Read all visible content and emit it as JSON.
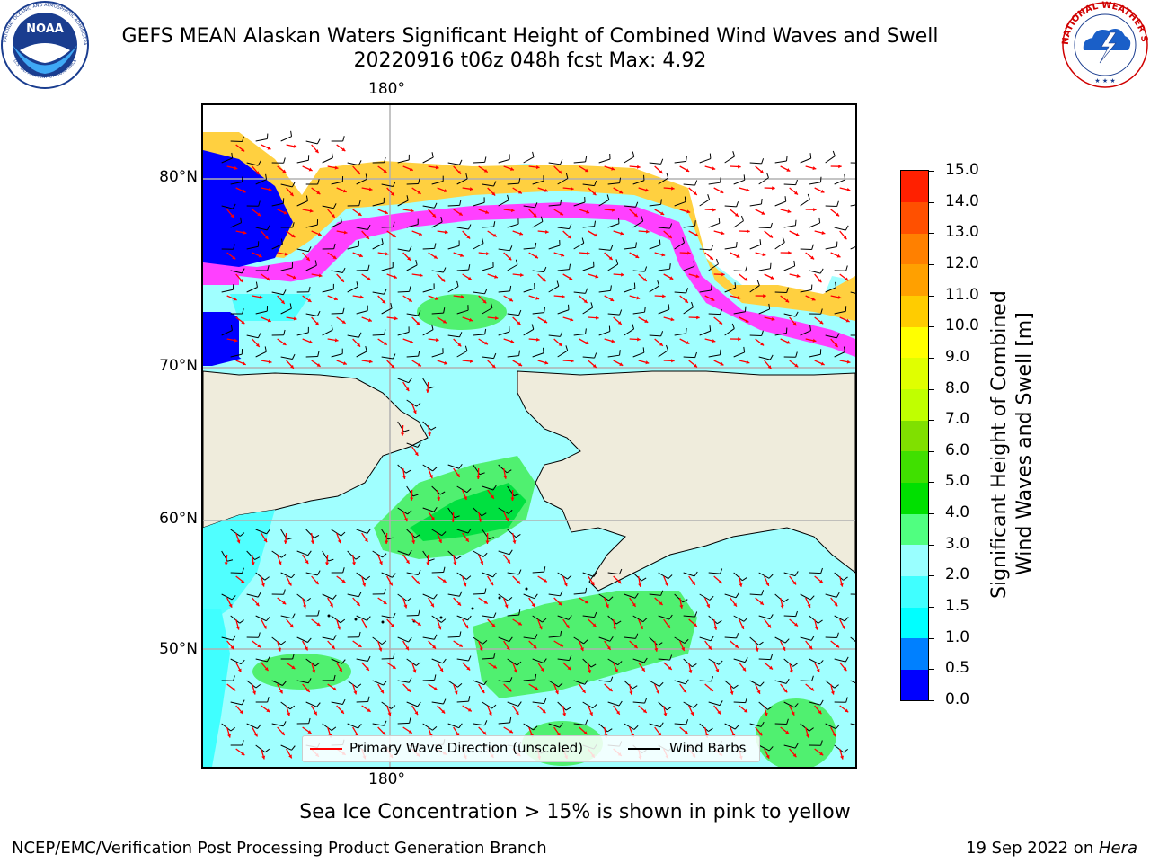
{
  "header": {
    "title_line1": "GEFS MEAN Alaskan Waters Significant Height of Combined Wind Waves and Swell",
    "title_line2": "20220916 t06z 048h fcst   Max: 4.92"
  },
  "logos": {
    "noaa": {
      "name": "NOAA",
      "ring_text": "NATIONAL OCEANIC AND ATMOSPHERIC ADMINISTRATION",
      "bottom_text": "U.S. DEPARTMENT OF COMMERCE"
    },
    "nws": {
      "ring_text": "NATIONAL WEATHER SERVICE"
    }
  },
  "map": {
    "lon_top_label": "180°",
    "lon_bottom_label": "180°",
    "lat_labels": [
      "80°N",
      "70°N",
      "60°N",
      "50°N"
    ]
  },
  "legend": {
    "wave_label": "Primary Wave Direction (unscaled)",
    "barb_label": "Wind Barbs",
    "wave_color": "#ff0000",
    "barb_color": "#000000"
  },
  "colorbar": {
    "title_line1": "Significant Height of Combined",
    "title_line2": "Wind Waves and Swell [m]",
    "ticks": [
      "0.0",
      "0.5",
      "1.0",
      "1.5",
      "2.0",
      "3.0",
      "4.0",
      "5.0",
      "6.0",
      "7.0",
      "8.0",
      "9.0",
      "10.0",
      "11.0",
      "12.0",
      "13.0",
      "14.0",
      "15.0"
    ],
    "colors": [
      "#0000ff",
      "#0080ff",
      "#00ffff",
      "#40ffff",
      "#99ffff",
      "#50ff80",
      "#00e000",
      "#40e000",
      "#80e000",
      "#c0ff00",
      "#e0ff00",
      "#ffff00",
      "#ffcc00",
      "#ffa000",
      "#ff8000",
      "#ff5000",
      "#ff2000"
    ]
  },
  "colors": {
    "land": "#efecdc",
    "ice_pink": "#ff40ff",
    "ice_yellow": "#ffd040",
    "sea_light": "#a0ffff",
    "sea_mid": "#50ffff",
    "sea_green": "#50f070",
    "deep_blue": "#0000ff"
  },
  "caption": "Sea Ice Concentration > 15% is shown in pink to yellow",
  "footer": {
    "left": "NCEP/EMC/Verification Post Processing Product Generation Branch",
    "right_prefix": "19 Sep 2022 on ",
    "right_host": "Hera"
  }
}
